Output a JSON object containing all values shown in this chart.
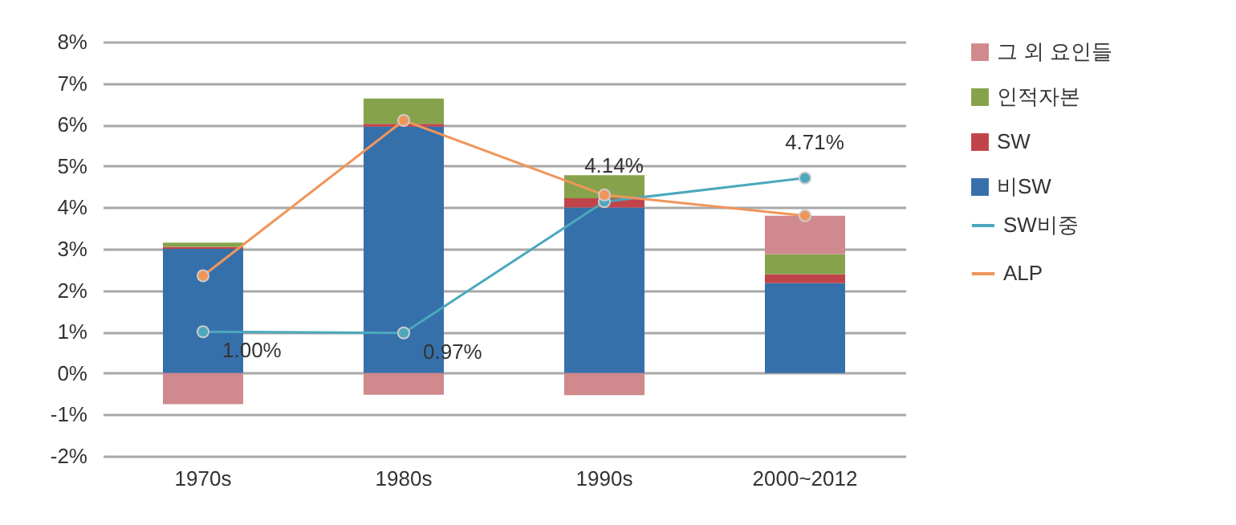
{
  "chart_data": {
    "type": "bar",
    "stacked": true,
    "categories": [
      "1970s",
      "1980s",
      "1990s",
      "2000~2012"
    ],
    "series": [
      {
        "name": "비SW",
        "color": "#3670aa",
        "values": [
          3.0,
          5.95,
          4.0,
          2.17
        ]
      },
      {
        "name": "SW",
        "color": "#c0444a",
        "values": [
          0.05,
          0.07,
          0.22,
          0.22
        ]
      },
      {
        "name": "인적자본",
        "color": "#86a34c",
        "values": [
          0.1,
          0.61,
          0.56,
          0.48
        ]
      },
      {
        "name": "그 외 요인들",
        "color": "#d0898d",
        "values": [
          -0.75,
          -0.52,
          -0.53,
          0.93
        ]
      },
      {
        "name": "SW비중",
        "type": "line",
        "color": "#4ba8bd",
        "values": [
          1.0,
          0.97,
          4.14,
          4.71
        ],
        "value_labels": [
          "1.00%",
          "0.97%",
          "4.14%",
          "4.71%"
        ]
      },
      {
        "name": "ALP",
        "type": "line",
        "color": "#f0955a",
        "values": [
          2.35,
          6.1,
          4.3,
          3.8
        ]
      }
    ],
    "ylim": [
      -2,
      8
    ],
    "yticks": [
      {
        "value": -2,
        "label": "-2%"
      },
      {
        "value": -1,
        "label": "-1%"
      },
      {
        "value": 0,
        "label": "0%"
      },
      {
        "value": 1,
        "label": "1%"
      },
      {
        "value": 2,
        "label": "2%"
      },
      {
        "value": 3,
        "label": "3%"
      },
      {
        "value": 4,
        "label": "4%"
      },
      {
        "value": 5,
        "label": "5%"
      },
      {
        "value": 6,
        "label": "6%"
      },
      {
        "value": 7,
        "label": "7%"
      },
      {
        "value": 8,
        "label": "8%"
      }
    ],
    "grid": "y",
    "legend": "right",
    "marker": "circle"
  }
}
